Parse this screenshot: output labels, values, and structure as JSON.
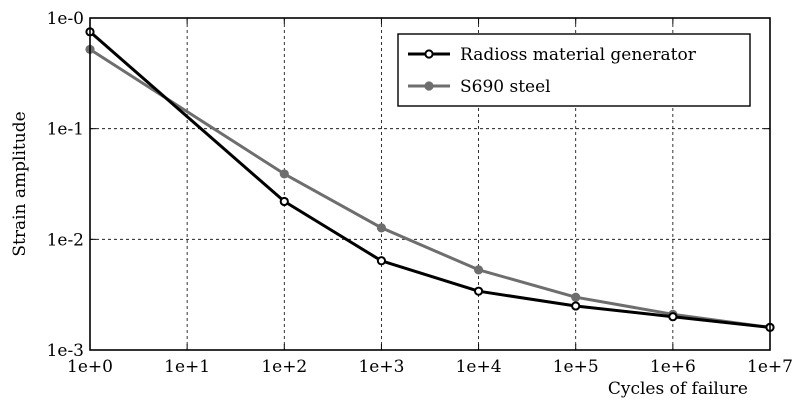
{
  "chart_data": {
    "type": "line",
    "xlabel": "Cycles of failure",
    "ylabel": "Strain amplitude",
    "x_scale": "log",
    "y_scale": "log",
    "xlim": [
      1,
      10000000
    ],
    "ylim": [
      0.001,
      1
    ],
    "grid": true,
    "legend_position": "top-right",
    "x_ticks": [
      {
        "value": 1,
        "label": "1e+0"
      },
      {
        "value": 10,
        "label": "1e+1"
      },
      {
        "value": 100,
        "label": "1e+2"
      },
      {
        "value": 1000,
        "label": "1e+3"
      },
      {
        "value": 10000,
        "label": "1e+4"
      },
      {
        "value": 100000,
        "label": "1e+5"
      },
      {
        "value": 1000000,
        "label": "1e+6"
      },
      {
        "value": 10000000,
        "label": "1e+7"
      }
    ],
    "y_ticks": [
      {
        "value": 1,
        "label": "1e-0"
      },
      {
        "value": 0.1,
        "label": "1e-1"
      },
      {
        "value": 0.01,
        "label": "1e-2"
      },
      {
        "value": 0.001,
        "label": "1e-3"
      }
    ],
    "series": [
      {
        "name": "Radioss material generator",
        "color": "#000000",
        "x": [
          1,
          100,
          1000,
          10000,
          100000,
          1000000,
          10000000
        ],
        "y": [
          0.75,
          0.022,
          0.0064,
          0.0034,
          0.0025,
          0.002,
          0.0016
        ]
      },
      {
        "name": "S690 steel",
        "color": "#6e6e6e",
        "x": [
          1,
          100,
          1000,
          10000,
          100000,
          1000000,
          10000000
        ],
        "y": [
          0.52,
          0.039,
          0.0127,
          0.0053,
          0.003,
          0.0021,
          0.0016
        ]
      }
    ]
  }
}
